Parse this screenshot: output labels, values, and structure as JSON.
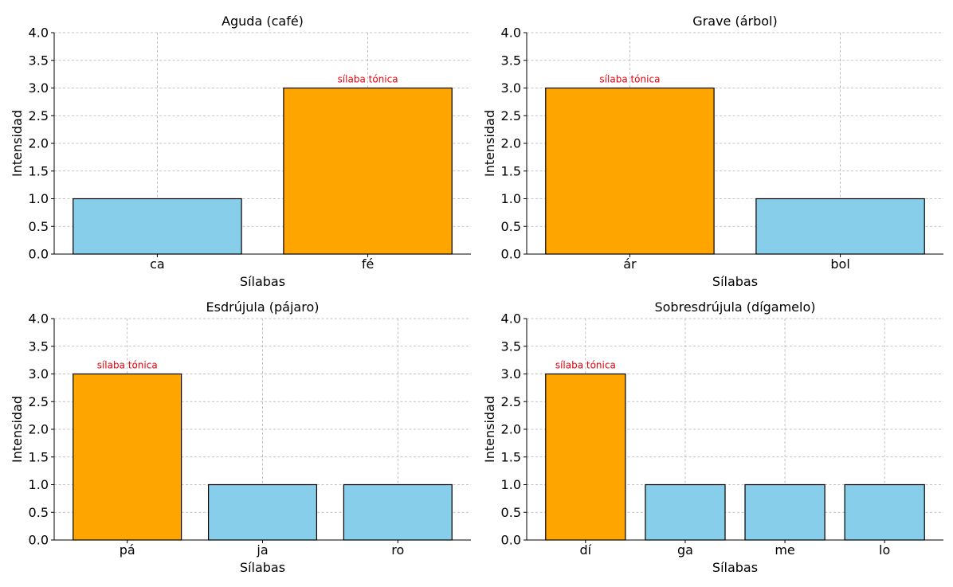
{
  "colors": {
    "stressed": "#FFA500",
    "unstressed": "#87CEEB",
    "annotation": "#E8000B",
    "grid": "#b0b0b0",
    "axis": "#000000"
  },
  "chart_data": [
    {
      "type": "bar",
      "title": "Aguda (café)",
      "xlabel": "Sílabas",
      "ylabel": "Intensidad",
      "ylim": [
        0,
        4
      ],
      "yticks": [
        "0.0",
        "0.5",
        "1.0",
        "1.5",
        "2.0",
        "2.5",
        "3.0",
        "3.5",
        "4.0"
      ],
      "categories": [
        "ca",
        "fé"
      ],
      "values": [
        1,
        3
      ],
      "stressed_index": 1,
      "annotation": "sílaba tónica",
      "grid": true
    },
    {
      "type": "bar",
      "title": "Grave (árbol)",
      "xlabel": "Sílabas",
      "ylabel": "Intensidad",
      "ylim": [
        0,
        4
      ],
      "yticks": [
        "0.0",
        "0.5",
        "1.0",
        "1.5",
        "2.0",
        "2.5",
        "3.0",
        "3.5",
        "4.0"
      ],
      "categories": [
        "ár",
        "bol"
      ],
      "values": [
        3,
        1
      ],
      "stressed_index": 0,
      "annotation": "sílaba tónica",
      "grid": true
    },
    {
      "type": "bar",
      "title": "Esdrújula (pájaro)",
      "xlabel": "Sílabas",
      "ylabel": "Intensidad",
      "ylim": [
        0,
        4
      ],
      "yticks": [
        "0.0",
        "0.5",
        "1.0",
        "1.5",
        "2.0",
        "2.5",
        "3.0",
        "3.5",
        "4.0"
      ],
      "categories": [
        "pá",
        "ja",
        "ro"
      ],
      "values": [
        3,
        1,
        1
      ],
      "stressed_index": 0,
      "annotation": "sílaba tónica",
      "grid": true
    },
    {
      "type": "bar",
      "title": "Sobresdrújula (dígamelo)",
      "xlabel": "Sílabas",
      "ylabel": "Intensidad",
      "ylim": [
        0,
        4
      ],
      "yticks": [
        "0.0",
        "0.5",
        "1.0",
        "1.5",
        "2.0",
        "2.5",
        "3.0",
        "3.5",
        "4.0"
      ],
      "categories": [
        "dí",
        "ga",
        "me",
        "lo"
      ],
      "values": [
        3,
        1,
        1,
        1
      ],
      "stressed_index": 0,
      "annotation": "sílaba tónica",
      "grid": true
    }
  ]
}
